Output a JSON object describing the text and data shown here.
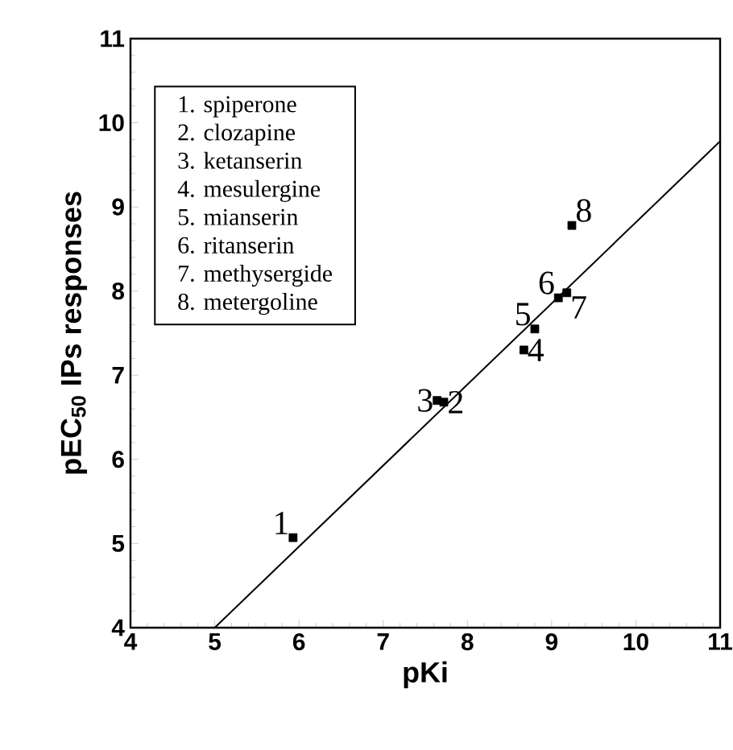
{
  "chart_data": {
    "type": "scatter",
    "xlabel": "pKi",
    "ylabel": "pEC$_{50}$ IPs responses",
    "xlim": [
      4,
      11
    ],
    "ylim": [
      4,
      11
    ],
    "xticks": [
      4,
      5,
      6,
      7,
      8,
      9,
      10,
      11
    ],
    "yticks": [
      4,
      5,
      6,
      7,
      8,
      9,
      10,
      11
    ],
    "grid": false,
    "series": [
      {
        "marker": "square",
        "color": "#000000",
        "x": [
          5.93,
          7.72,
          7.64,
          8.67,
          8.8,
          9.08,
          9.18,
          9.24
        ],
        "values": [
          5.07,
          6.68,
          6.7,
          7.3,
          7.55,
          7.92,
          7.98,
          8.78
        ]
      },
      {
        "type": "line",
        "marker": "none",
        "color": "#000000",
        "x": [
          5,
          11
        ],
        "values": [
          4.0,
          9.78
        ]
      }
    ],
    "annotations": [
      {
        "text": "1",
        "x": 5.93,
        "y": 5.07
      },
      {
        "text": "2",
        "x": 7.72,
        "y": 6.68
      },
      {
        "text": "3",
        "x": 7.64,
        "y": 6.7
      },
      {
        "text": "4",
        "x": 8.67,
        "y": 7.3
      },
      {
        "text": "5",
        "x": 8.8,
        "y": 7.55
      },
      {
        "text": "6",
        "x": 9.08,
        "y": 7.92
      },
      {
        "text": "7",
        "x": 9.18,
        "y": 7.98
      },
      {
        "text": "8",
        "x": 9.24,
        "y": 8.78
      },
      "1.  spiperone",
      "2.  clozapine",
      "3.  ketanserin",
      "4.  mesulergine",
      "5.  mianserin",
      "6.  ritanserin",
      "7.  methysergide",
      "8.  metergoline"
    ]
  }
}
